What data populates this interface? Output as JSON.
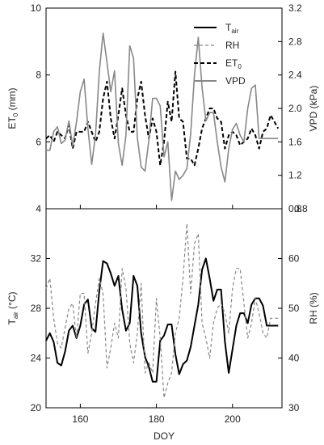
{
  "chart_data": [
    {
      "type": "line",
      "panel": "top",
      "xlim": [
        151,
        213
      ],
      "ylim_left": [
        4,
        10
      ],
      "ylim_right": [
        0.8,
        3.2
      ],
      "yticks_left": [
        4,
        6,
        8,
        10
      ],
      "yticks_right": [
        0.8,
        1.2,
        1.6,
        2.0,
        2.4,
        2.8,
        3.2
      ],
      "ylabel_left": {
        "base": "ET",
        "sub": "0",
        "rest": " (mm)"
      },
      "ylabel_right": "VPD (kPa)",
      "right_bottom_tick_overlap": "0.8",
      "legend_placement": "top-right",
      "legend": [
        {
          "key": "tair",
          "base": "T",
          "sub": "air"
        },
        {
          "key": "rh",
          "base": "RH",
          "sub": ""
        },
        {
          "key": "et0",
          "base": "ET",
          "sub": "0"
        },
        {
          "key": "vpd",
          "base": "VPD",
          "sub": ""
        }
      ],
      "series": [
        {
          "name": "ET0",
          "axis": "left",
          "color": "#000000",
          "x": [
            151,
            152,
            153,
            154,
            155,
            156,
            157,
            158,
            159,
            160,
            161,
            162,
            163,
            164,
            165,
            166,
            167,
            168,
            169,
            170,
            171,
            172,
            173,
            174,
            175,
            176,
            177,
            178,
            179,
            180,
            181,
            182,
            183,
            184,
            185,
            186,
            187,
            188,
            189,
            190,
            191,
            192,
            193,
            194,
            195,
            196,
            197,
            198,
            199,
            200,
            201,
            202,
            203,
            204,
            205,
            206,
            207,
            208,
            209,
            210,
            211,
            212
          ],
          "values": [
            6.1,
            6.2,
            6.0,
            6.3,
            6.2,
            6.1,
            6.5,
            5.8,
            6.3,
            6.3,
            6.3,
            6.6,
            6.3,
            6.0,
            6.3,
            7.3,
            7.8,
            6.7,
            6.1,
            6.8,
            7.6,
            6.8,
            6.3,
            6.3,
            7.3,
            7.8,
            6.8,
            6.1,
            6.7,
            6.3,
            5.3,
            6.0,
            7.2,
            6.6,
            8.1,
            6.7,
            6.6,
            5.5,
            5.5,
            5.3,
            5.8,
            6.4,
            6.7,
            7.0,
            7.0,
            6.7,
            6.6,
            5.8,
            6.2,
            6.3,
            6.2,
            5.9,
            6.0,
            6.1,
            6.4,
            6.2,
            5.8,
            6.3,
            6.4,
            6.8,
            6.6,
            6.4
          ]
        },
        {
          "name": "VPD",
          "axis": "right",
          "color": "#888888",
          "x": [
            151,
            152,
            153,
            154,
            155,
            156,
            157,
            158,
            159,
            160,
            161,
            162,
            163,
            164,
            165,
            166,
            167,
            168,
            169,
            170,
            171,
            172,
            173,
            174,
            175,
            176,
            177,
            178,
            179,
            180,
            181,
            182,
            183,
            184,
            185,
            186,
            187,
            188,
            189,
            190,
            191,
            192,
            193,
            194,
            195,
            196,
            197,
            198,
            199,
            200,
            201,
            202,
            203,
            204,
            205,
            206,
            207,
            208,
            209,
            210,
            211,
            212
          ],
          "values": [
            1.5,
            1.5,
            1.72,
            1.78,
            1.58,
            1.62,
            1.85,
            1.55,
            1.84,
            2.2,
            2.35,
            1.76,
            1.33,
            1.68,
            2.44,
            2.9,
            2.55,
            2.2,
            2.45,
            1.58,
            1.32,
            1.68,
            2.75,
            2.6,
            1.65,
            1.3,
            1.25,
            1.62,
            2.12,
            2.12,
            2.03,
            1.42,
            1.6,
            0.9,
            1.25,
            1.15,
            1.2,
            1.28,
            1.7,
            2.4,
            2.85,
            2.25,
            1.85,
            1.95,
            1.95,
            1.6,
            1.3,
            1.12,
            1.52,
            1.75,
            1.82,
            1.68,
            1.6,
            2.0,
            2.24,
            2.28,
            1.64,
            1.64,
            1.64,
            1.64,
            1.64,
            1.64
          ]
        }
      ]
    },
    {
      "type": "line",
      "panel": "bottom",
      "xlim": [
        151,
        213
      ],
      "ylim_left": [
        20,
        36
      ],
      "ylim_right": [
        30,
        70
      ],
      "xticks": [
        160,
        180,
        200
      ],
      "yticks_left": [
        20,
        24,
        28,
        32
      ],
      "yticks_right": [
        30,
        40,
        50,
        60
      ],
      "xlabel": "DOY",
      "ylabel_left": {
        "base": "T",
        "sub": "air",
        "rest": " (°C)"
      },
      "ylabel_right": "RH (%)",
      "series": [
        {
          "name": "Tair",
          "axis": "left",
          "color": "#000000",
          "x": [
            151,
            152,
            153,
            154,
            155,
            156,
            157,
            158,
            159,
            160,
            161,
            162,
            163,
            164,
            165,
            166,
            167,
            168,
            169,
            170,
            171,
            172,
            173,
            174,
            175,
            176,
            177,
            178,
            179,
            180,
            181,
            182,
            183,
            184,
            185,
            186,
            187,
            188,
            189,
            190,
            191,
            192,
            193,
            194,
            195,
            196,
            197,
            198,
            199,
            200,
            201,
            202,
            203,
            204,
            205,
            206,
            207,
            208,
            209,
            210,
            211,
            212
          ],
          "values": [
            25.4,
            26.0,
            25.3,
            23.6,
            23.4,
            24.5,
            26.2,
            26.6,
            25.6,
            26.6,
            28.3,
            28.7,
            26.4,
            26.1,
            29.4,
            31.8,
            31.6,
            30.8,
            29.8,
            30.6,
            27.9,
            26.2,
            26.8,
            30.6,
            29.8,
            26.0,
            24.1,
            23.3,
            22.1,
            22.1,
            25.4,
            25.8,
            26.7,
            26.7,
            24.3,
            22.7,
            23.5,
            23.8,
            24.9,
            26.6,
            28.3,
            31.1,
            32.0,
            30.4,
            28.6,
            29.5,
            29.5,
            25.3,
            22.8,
            24.7,
            26.6,
            27.6,
            27.6,
            26.8,
            28.3,
            28.8,
            28.8,
            28.2,
            26.6,
            26.6,
            26.6,
            26.6
          ]
        },
        {
          "name": "RH",
          "axis": "right",
          "color": "#888888",
          "x": [
            151,
            152,
            153,
            154,
            155,
            156,
            157,
            158,
            159,
            160,
            161,
            162,
            163,
            164,
            165,
            166,
            167,
            168,
            169,
            170,
            171,
            172,
            173,
            174,
            175,
            176,
            177,
            178,
            179,
            180,
            181,
            182,
            183,
            184,
            185,
            186,
            187,
            188,
            189,
            190,
            191,
            192,
            193,
            194,
            195,
            196,
            197,
            198,
            199,
            200,
            201,
            202,
            203,
            204,
            205,
            206,
            207,
            208,
            209,
            210,
            211,
            212
          ],
          "values": [
            54,
            56,
            48,
            43,
            42,
            46,
            50,
            51,
            44,
            53,
            53,
            41,
            45,
            51,
            56,
            53,
            38,
            42,
            47,
            44,
            58,
            54,
            43,
            39,
            45,
            55,
            37,
            39,
            37,
            52,
            44,
            32,
            35,
            37,
            45,
            48,
            56,
            67,
            53,
            63,
            65,
            47,
            44,
            40,
            47,
            50,
            51,
            49,
            45,
            54,
            58,
            58,
            51,
            44,
            47,
            52,
            49,
            45,
            44,
            48,
            48,
            48
          ]
        }
      ]
    }
  ]
}
